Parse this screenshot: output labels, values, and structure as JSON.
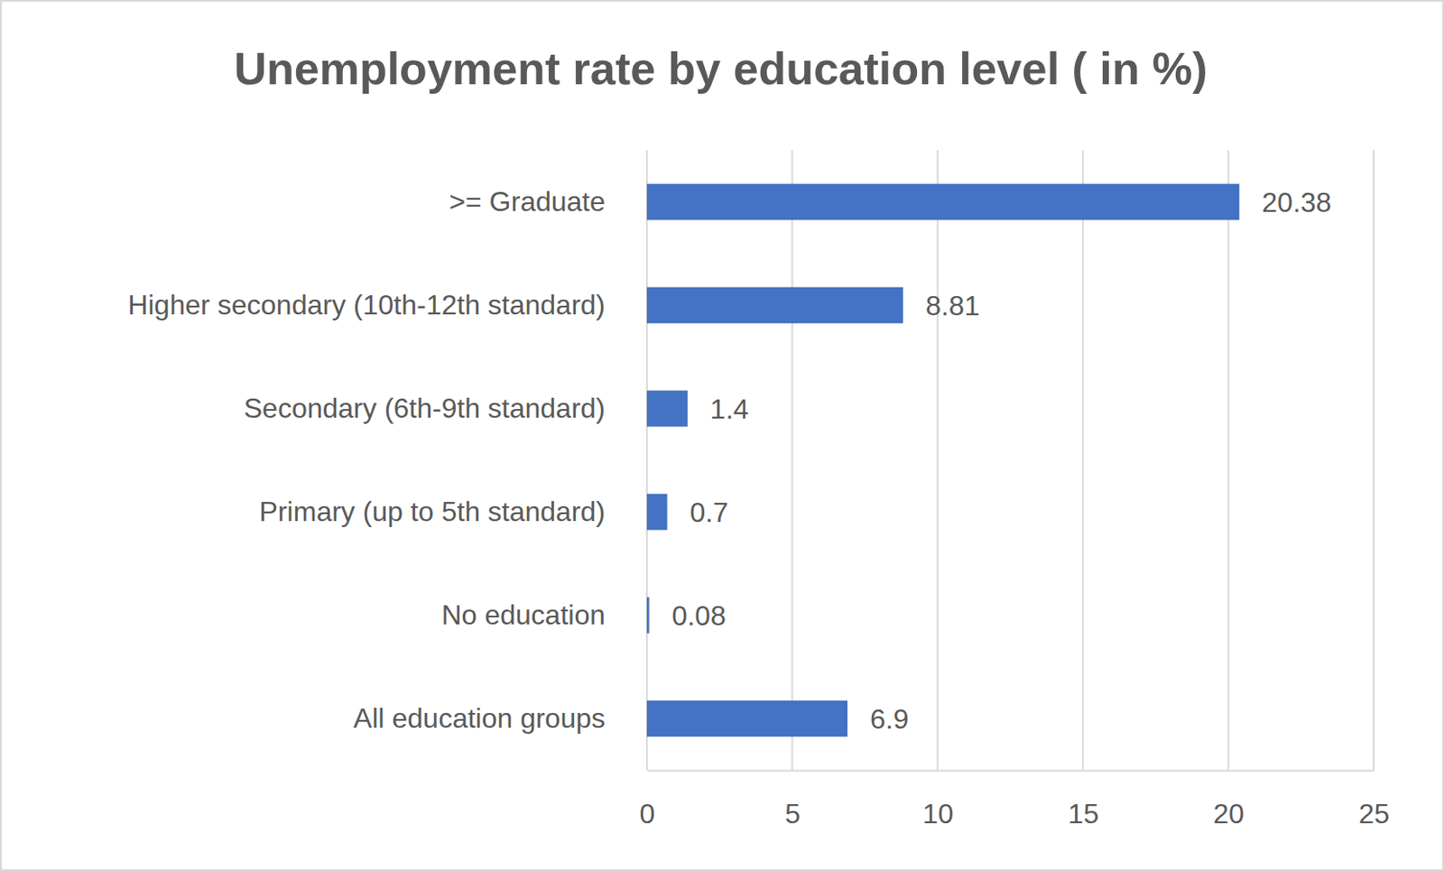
{
  "chart_data": {
    "type": "bar",
    "title": "Unemployment rate by education level ( in %)",
    "orientation": "horizontal",
    "categories": [
      ">= Graduate",
      "Higher secondary  (10th-12th standard)",
      "Secondary (6th-9th  standard)",
      "Primary (up to 5th  standard)",
      "No education",
      "All education groups"
    ],
    "values": [
      20.38,
      8.81,
      1.4,
      0.7,
      0.08,
      6.9
    ],
    "color": "#4472c4",
    "xlim": [
      0,
      25
    ],
    "xticks": [
      0,
      5,
      10,
      15,
      20,
      25
    ],
    "grid": true,
    "data_labels": true
  }
}
